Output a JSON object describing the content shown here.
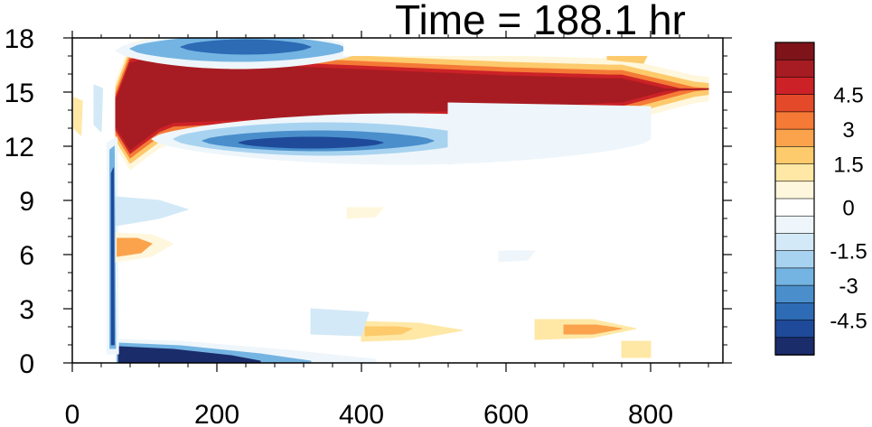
{
  "chart_data": {
    "type": "heatmap",
    "title": "Time = 188.1 hr",
    "xlabel": "",
    "ylabel": "",
    "xlim": [
      0,
      900
    ],
    "ylim": [
      0,
      18
    ],
    "x_ticks": [
      0,
      200,
      400,
      600,
      800
    ],
    "y_ticks": [
      0,
      3,
      6,
      9,
      12,
      15,
      18
    ],
    "colorbar": {
      "range": [
        -6,
        6
      ],
      "levels": [
        -6,
        -5.25,
        -4.5,
        -3.75,
        -3,
        -2.25,
        -1.5,
        -0.75,
        -0.25,
        0.25,
        0.75,
        1.5,
        2.25,
        3,
        3.75,
        4.5,
        5.25,
        6
      ],
      "tick_labels": [
        "4.5",
        "3",
        "1.5",
        "0",
        "-1.5",
        "-3",
        "-4.5"
      ],
      "tick_values": [
        4.5,
        3,
        1.5,
        0,
        -1.5,
        -3,
        -4.5
      ],
      "colors": [
        "#1b2c6b",
        "#1f4a9a",
        "#2d6bb5",
        "#4a8fcc",
        "#74b4e2",
        "#a8d3f0",
        "#d3e9f7",
        "#eef6fb",
        "#ffffff",
        "#fff7dd",
        "#ffe8a6",
        "#fdca6c",
        "#fba34c",
        "#f47a36",
        "#e44a2a",
        "#cc2227",
        "#a71c22",
        "#7e1419"
      ],
      "placement": "right"
    },
    "features": [
      {
        "kind": "positive_band",
        "x_range": [
          60,
          860
        ],
        "y_center": 15.0,
        "peak": 6
      },
      {
        "kind": "negative_band",
        "x_range": [
          150,
          520
        ],
        "y_center": 12.3,
        "peak": -5.5
      },
      {
        "kind": "negative_band",
        "x_range": [
          70,
          380
        ],
        "y_center": 17.2,
        "peak": -5
      },
      {
        "kind": "negative_band",
        "x_range": [
          60,
          330
        ],
        "y_center": 0.6,
        "peak": -6
      },
      {
        "kind": "negative_column",
        "x": 55,
        "y_range": [
          0,
          12
        ],
        "peak": -5
      },
      {
        "kind": "positive_patch",
        "x": 75,
        "y": 6.4,
        "peak": 2.5
      },
      {
        "kind": "positive_patch",
        "x": 460,
        "y": 1.7,
        "peak": 2
      },
      {
        "kind": "positive_patch",
        "x": 730,
        "y": 1.8,
        "peak": 2.5
      }
    ]
  }
}
